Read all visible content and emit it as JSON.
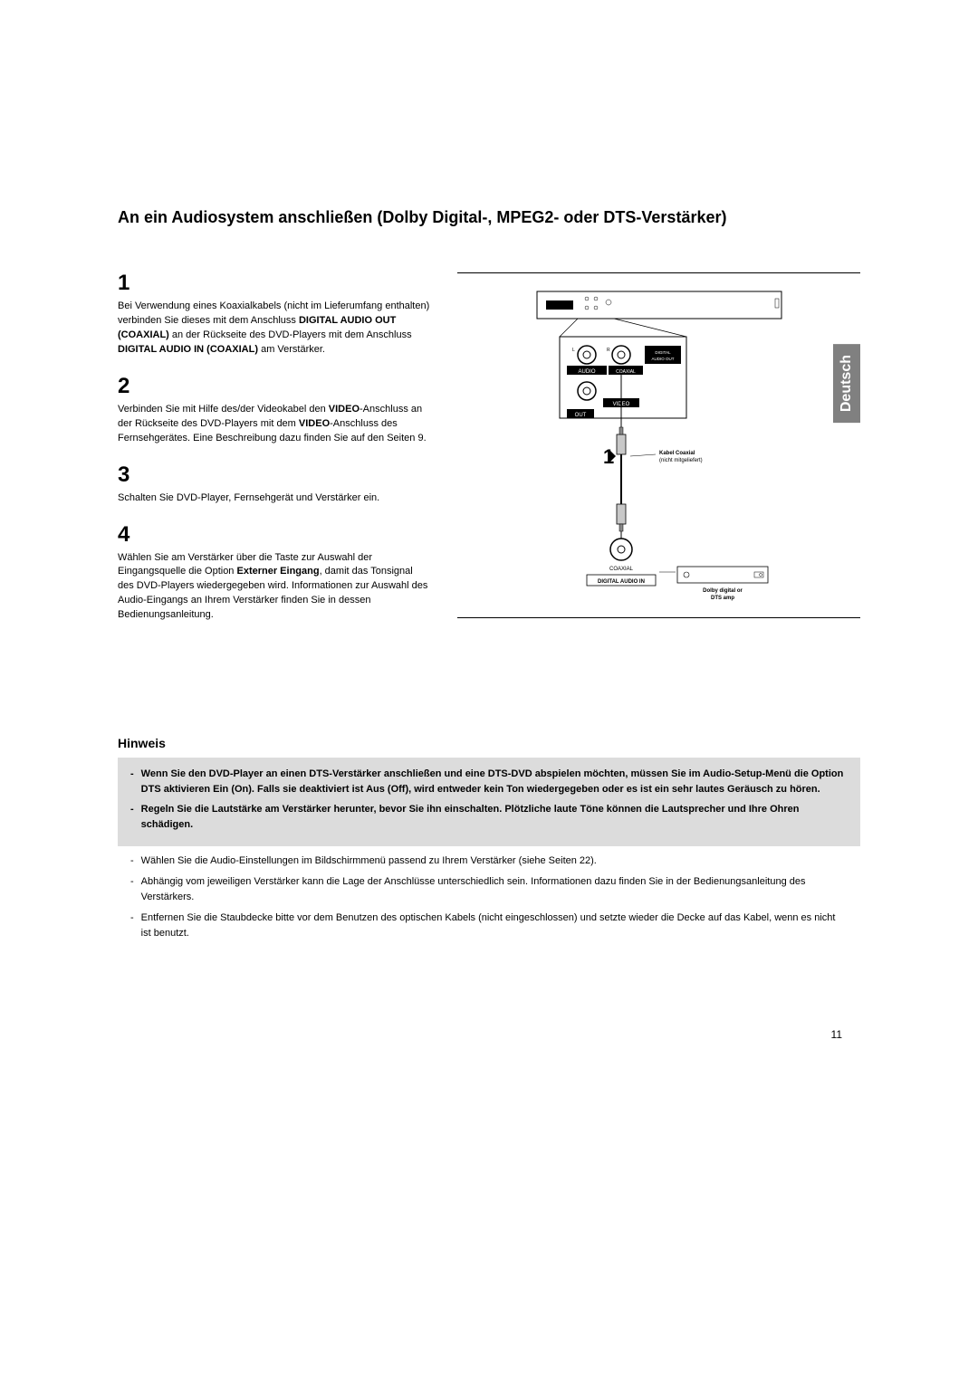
{
  "sideTab": "Deutsch",
  "title": "An ein Audiosystem anschließen (Dolby Digital-, MPEG2- oder DTS-Verstärker)",
  "steps": [
    {
      "num": "1",
      "html": "Bei Verwendung eines Koaxialkabels (nicht im Lieferumfang enthalten) verbinden Sie dieses mit dem Anschluss <b>DIGITAL AUDIO OUT (COAXIAL)</b> an der Rückseite des DVD-Players mit dem Anschluss <b>DIGITAL AUDIO IN (COAXIAL)</b> am Verstärker."
    },
    {
      "num": "2",
      "html": "Verbinden Sie mit Hilfe des/der Videokabel den <b>VIDEO</b>-Anschluss an der Rückseite des DVD-Players mit dem <b>VIDEO</b>-Anschluss des Fernsehgerätes. Eine Beschreibung dazu finden Sie auf den Seiten 9."
    },
    {
      "num": "3",
      "html": "Schalten Sie DVD-Player, Fernsehgerät und Verstärker ein."
    },
    {
      "num": "4",
      "html": "Wählen Sie am Verstärker über die Taste zur Auswahl der Eingangsquelle die Option <b>Externer Eingang</b>, damit das Tonsignal des DVD-Players wiedergegeben wird. Informationen zur Auswahl des Audio-Eingangs an Ihrem Verstärker finden Sie in dessen Bedienungsanleitung."
    }
  ],
  "diagram": {
    "labels": {
      "audio": "AUDIO",
      "coaxial": "COAXIAL",
      "digitalAudioOut": "DIGITAL AUDIO OUT",
      "video": "VIDEO",
      "out": "OUT",
      "l": "L",
      "r": "R",
      "stepMarker": "1",
      "cableNote1": "Kabel Coaxial",
      "cableNote2": "(nicht mitgeliefert)",
      "coaxialBottom": "COAXIAL",
      "digitalAudioIn": "DIGITAL AUDIO IN",
      "ampNote1": "Dolby digital or",
      "ampNote2": "DTS amp"
    },
    "colors": {
      "stroke": "#000000",
      "fill": "#ffffff",
      "black": "#000000",
      "grey": "#c8c8c8"
    }
  },
  "hinweis": {
    "title": "Hinweis",
    "boxBullets": [
      "Wenn Sie den DVD-Player an einen DTS-Verstärker anschließen und eine DTS-DVD abspielen möchten, müssen Sie im Audio-Setup-Menü die Option DTS aktivieren Ein (On). Falls sie deaktiviert ist Aus (Off), wird entweder kein Ton wiedergegeben oder es ist ein sehr lautes Geräusch zu hören.",
      "Regeln Sie die Lautstärke am Verstärker herunter, bevor Sie ihn einschalten. Plötzliche laute Töne können die Lautsprecher und Ihre Ohren schädigen."
    ],
    "plainBullets": [
      "Wählen Sie die Audio-Einstellungen im Bildschirmmenü passend zu Ihrem Verstärker (siehe Seiten 22).",
      "Abhängig vom jeweiligen Verstärker kann die Lage der Anschlüsse unterschiedlich sein. Informationen dazu finden Sie in der Bedienungsanleitung des Verstärkers.",
      "Entfernen Sie die Staubdecke bitte vor dem Benutzen des optischen Kabels (nicht eingeschlossen) und setzte wieder die Decke auf das Kabel, wenn es nicht ist benutzt."
    ]
  },
  "pageNum": "11"
}
